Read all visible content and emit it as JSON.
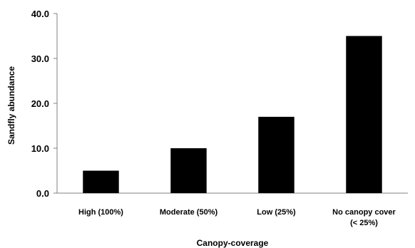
{
  "chart_data": {
    "type": "bar",
    "title": "",
    "xlabel": "Canopy-coverage",
    "ylabel": "Sandfly abundance",
    "categories": [
      [
        "High (100%)"
      ],
      [
        "Moderate (50%)"
      ],
      [
        "Low (25%)"
      ],
      [
        "No canopy  cover",
        "(< 25%)"
      ]
    ],
    "values": [
      5.0,
      10.0,
      17.0,
      35.0
    ],
    "ylim": [
      0,
      40
    ],
    "yticks": [
      "0.0",
      "10.0",
      "20.0",
      "30.0",
      "40.0"
    ],
    "ytick_values": [
      0,
      10,
      20,
      30,
      40
    ],
    "grid": false,
    "bar_color": "#000000",
    "axis_color": "#808080"
  }
}
